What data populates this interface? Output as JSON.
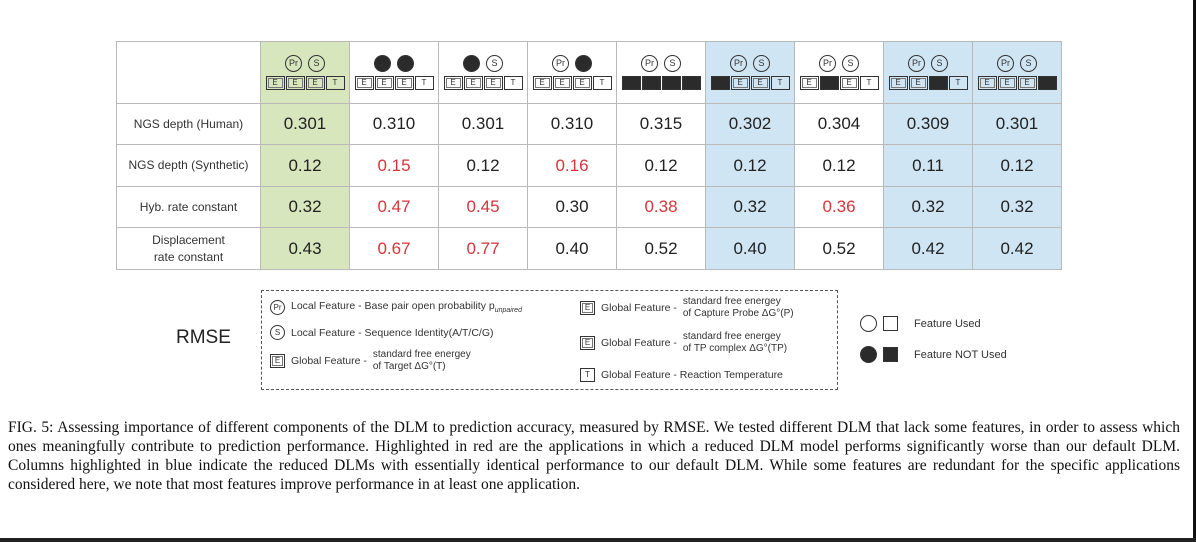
{
  "table": {
    "columns": [
      {
        "pr_used": true,
        "s_used": true,
        "et_used": true,
        "ep_used": true,
        "etp_used": true,
        "t_used": true,
        "highlight": "green"
      },
      {
        "pr_used": false,
        "s_used": false,
        "et_used": true,
        "ep_used": true,
        "etp_used": true,
        "t_used": true,
        "highlight": "none"
      },
      {
        "pr_used": false,
        "s_used": true,
        "et_used": true,
        "ep_used": true,
        "etp_used": true,
        "t_used": true,
        "highlight": "none"
      },
      {
        "pr_used": true,
        "s_used": false,
        "et_used": true,
        "ep_used": true,
        "etp_used": true,
        "t_used": true,
        "highlight": "none"
      },
      {
        "pr_used": true,
        "s_used": true,
        "et_used": false,
        "ep_used": false,
        "etp_used": false,
        "t_used": false,
        "highlight": "none"
      },
      {
        "pr_used": true,
        "s_used": true,
        "et_used": false,
        "ep_used": true,
        "etp_used": true,
        "t_used": true,
        "highlight": "blue"
      },
      {
        "pr_used": true,
        "s_used": true,
        "et_used": true,
        "ep_used": false,
        "etp_used": true,
        "t_used": true,
        "highlight": "none"
      },
      {
        "pr_used": true,
        "s_used": true,
        "et_used": true,
        "ep_used": true,
        "etp_used": false,
        "t_used": true,
        "highlight": "blue"
      },
      {
        "pr_used": true,
        "s_used": true,
        "et_used": true,
        "ep_used": true,
        "etp_used": true,
        "t_used": false,
        "highlight": "blue"
      }
    ],
    "icon_glyphs": {
      "pr": "Pr",
      "s": "S",
      "et": "E",
      "ep": "E",
      "etp": "E",
      "t": "T"
    },
    "rows": [
      {
        "label": "NGS depth (Human)",
        "values": [
          "0.301",
          "0.310",
          "0.301",
          "0.310",
          "0.315",
          "0.302",
          "0.304",
          "0.309",
          "0.301"
        ],
        "red": [
          false,
          false,
          false,
          false,
          false,
          false,
          false,
          false,
          false
        ]
      },
      {
        "label": "NGS depth (Synthetic)",
        "values": [
          "0.12",
          "0.15",
          "0.12",
          "0.16",
          "0.12",
          "0.12",
          "0.12",
          "0.11",
          "0.12"
        ],
        "red": [
          false,
          true,
          false,
          true,
          false,
          false,
          false,
          false,
          false
        ]
      },
      {
        "label": "Hyb. rate constant",
        "values": [
          "0.32",
          "0.47",
          "0.45",
          "0.30",
          "0.38",
          "0.32",
          "0.36",
          "0.32",
          "0.32"
        ],
        "red": [
          false,
          true,
          true,
          false,
          true,
          false,
          true,
          false,
          false
        ]
      },
      {
        "label_line1": "Displacement",
        "label_line2": "rate constant",
        "values": [
          "0.43",
          "0.67",
          "0.77",
          "0.40",
          "0.52",
          "0.40",
          "0.52",
          "0.42",
          "0.42"
        ],
        "red": [
          false,
          true,
          true,
          false,
          false,
          false,
          false,
          false,
          false
        ]
      }
    ]
  },
  "legend": {
    "metric_label": "RMSE",
    "pr_text": "Local Feature - Base pair open probability p",
    "pr_subscript": "unpaired",
    "s_text": "Local Feature - Sequence Identity(A/T/C/G)",
    "et_prefix": "Global Feature -",
    "et_line1": "standard free energey",
    "et_line2": "of Target ΔG°(T)",
    "ep_prefix": "Global Feature -",
    "ep_line1": "standard free energey",
    "ep_line2": "of Capture Probe ΔG°(P)",
    "etp_prefix": "Global Feature -",
    "etp_line1": "standard free energey",
    "etp_line2": "of TP complex ΔG°(TP)",
    "t_text": "Global Feature - Reaction Temperature",
    "used_label": "Feature Used",
    "not_used_label": "Feature NOT Used"
  },
  "caption": "FIG. 5:  Assessing importance of different components of the DLM to prediction accuracy, measured by RMSE. We tested different DLM that lack some features, in order to assess which ones meaningfully contribute to prediction performance. Highlighted in red are the applications in which a reduced DLM model performs significantly worse than our default DLM. Columns highlighted in blue indicate the reduced DLMs with essentially identical performance to our default DLM. While some features are redundant for the specific applications considered here, we note that most features improve performance in at least one application.",
  "colors": {
    "green": "#d7e6bd",
    "blue": "#cfe5f4",
    "red_value": "#d7353a"
  }
}
